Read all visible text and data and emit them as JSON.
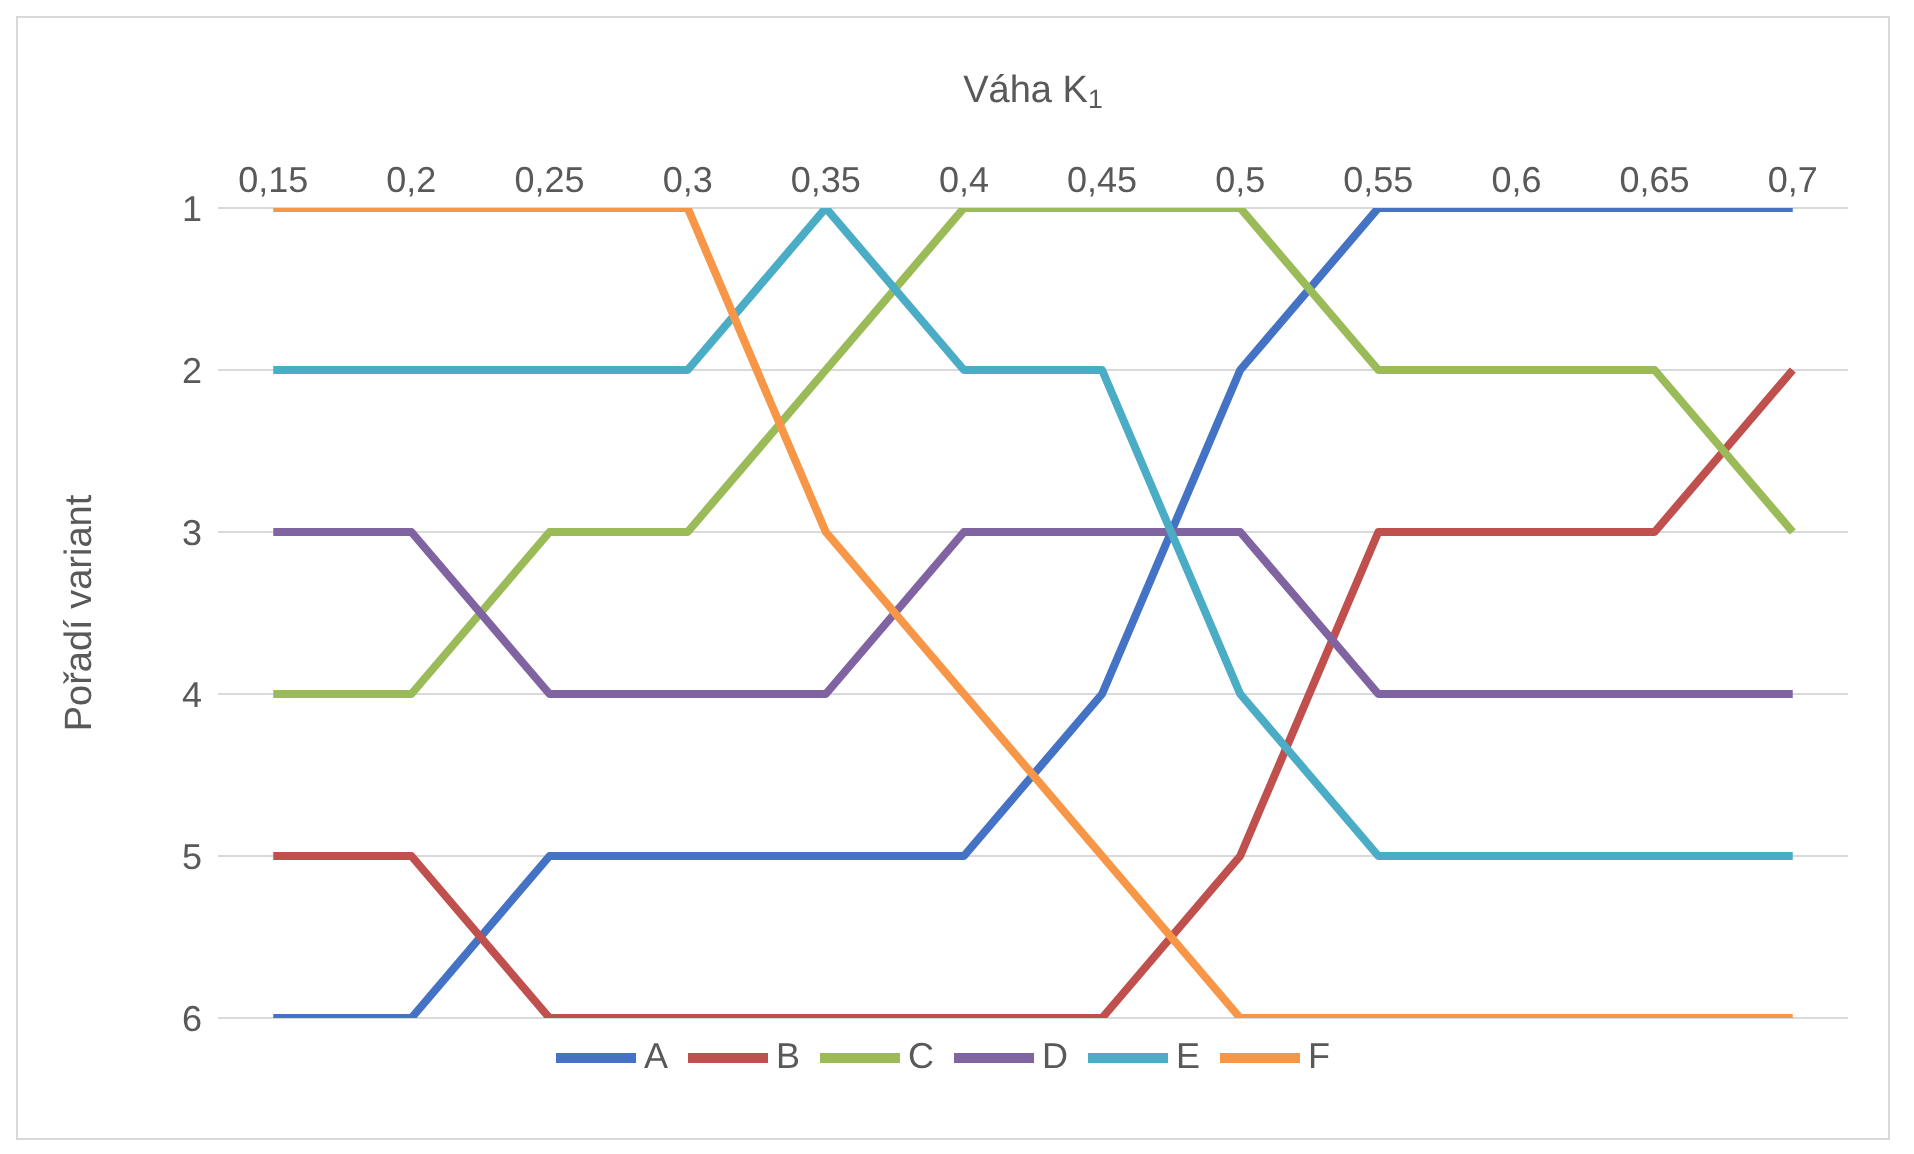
{
  "chart_data": {
    "type": "line",
    "xlabel": "Váha K$_{1}$",
    "ylabel": "Pořadí variant",
    "categories": [
      "0,15",
      "0,2",
      "0,25",
      "0,3",
      "0,35",
      "0,4",
      "0,45",
      "0,5",
      "0,55",
      "0,6",
      "0,65",
      "0,7"
    ],
    "series": [
      {
        "name": "A",
        "color": "#4472c4",
        "values": [
          6,
          6,
          5,
          5,
          5,
          5,
          4,
          2,
          1,
          1,
          1,
          1
        ]
      },
      {
        "name": "B",
        "color": "#c0504d",
        "values": [
          5,
          5,
          6,
          6,
          6,
          6,
          6,
          5,
          3,
          3,
          3,
          2
        ]
      },
      {
        "name": "C",
        "color": "#9bbb59",
        "values": [
          4,
          4,
          3,
          3,
          2,
          1,
          1,
          1,
          2,
          2,
          2,
          3
        ]
      },
      {
        "name": "D",
        "color": "#8064a2",
        "values": [
          3,
          3,
          4,
          4,
          4,
          3,
          3,
          3,
          4,
          4,
          4,
          4
        ]
      },
      {
        "name": "E",
        "color": "#4bacc6",
        "values": [
          2,
          2,
          2,
          2,
          1,
          2,
          2,
          4,
          5,
          5,
          5,
          5
        ]
      },
      {
        "name": "F",
        "color": "#f79646",
        "values": [
          1,
          1,
          1,
          1,
          3,
          4,
          5,
          6,
          6,
          6,
          6,
          6
        ]
      }
    ],
    "ylim": [
      6,
      1
    ],
    "yticks": [
      1,
      2,
      3,
      4,
      5,
      6
    ],
    "grid": "y",
    "legend": "bottom",
    "marker": "none",
    "line_style": "solid"
  }
}
